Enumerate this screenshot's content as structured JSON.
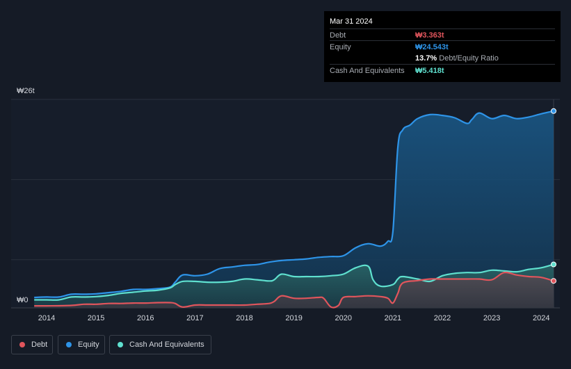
{
  "tooltip": {
    "date": "Mar 31 2024",
    "debt_label": "Debt",
    "debt_value": "₩3.363t",
    "equity_label": "Equity",
    "equity_value": "₩24.543t",
    "ratio_value": "13.7%",
    "ratio_label": "Debt/Equity Ratio",
    "cash_label": "Cash And Equivalents",
    "cash_value": "₩5.418t"
  },
  "legend": {
    "debt": "Debt",
    "equity": "Equity",
    "cash": "Cash And Equivalents"
  },
  "colors": {
    "debt": "#e0555c",
    "equity": "#2e94e8",
    "cash": "#5fe0cf",
    "background": "#151b26"
  },
  "chart_data": {
    "type": "area",
    "x_range": [
      2013.7,
      2024.3
    ],
    "ylim": [
      0,
      26
    ],
    "y_unit": "trillion KRW",
    "y_tick_labels": [
      "₩0",
      "₩26t"
    ],
    "x_tick_labels": [
      "2014",
      "2015",
      "2016",
      "2017",
      "2018",
      "2019",
      "2020",
      "2021",
      "2022",
      "2023",
      "2024"
    ],
    "grid": true,
    "legend_position": "bottom-left",
    "series": [
      {
        "name": "Debt",
        "key": "debt",
        "x": [
          2013.75,
          2014.0,
          2014.5,
          2014.75,
          2015.0,
          2015.25,
          2015.5,
          2015.75,
          2016.0,
          2016.25,
          2016.5,
          2016.6,
          2016.75,
          2017.0,
          2017.25,
          2017.5,
          2017.75,
          2018.0,
          2018.25,
          2018.5,
          2018.6,
          2018.75,
          2019.0,
          2019.25,
          2019.5,
          2019.6,
          2019.75,
          2019.9,
          2020.0,
          2020.25,
          2020.5,
          2020.75,
          2020.9,
          2021.0,
          2021.1,
          2021.2,
          2021.5,
          2021.75,
          2022.0,
          2022.25,
          2022.5,
          2022.75,
          2023.0,
          2023.25,
          2023.5,
          2023.75,
          2024.0,
          2024.25
        ],
        "values": [
          0.25,
          0.25,
          0.3,
          0.45,
          0.45,
          0.55,
          0.55,
          0.6,
          0.6,
          0.65,
          0.65,
          0.55,
          0.1,
          0.35,
          0.35,
          0.35,
          0.35,
          0.35,
          0.45,
          0.55,
          0.8,
          1.5,
          1.2,
          1.2,
          1.3,
          1.2,
          0.1,
          0.3,
          1.3,
          1.4,
          1.5,
          1.4,
          1.2,
          0.6,
          1.8,
          3.1,
          3.4,
          3.6,
          3.6,
          3.6,
          3.6,
          3.6,
          3.5,
          4.4,
          4.1,
          3.9,
          3.8,
          3.363
        ]
      },
      {
        "name": "Equity",
        "key": "equity",
        "x": [
          2013.75,
          2014.0,
          2014.25,
          2014.5,
          2014.75,
          2015.0,
          2015.25,
          2015.5,
          2015.75,
          2016.0,
          2016.25,
          2016.5,
          2016.6,
          2016.75,
          2017.0,
          2017.25,
          2017.5,
          2017.75,
          2018.0,
          2018.25,
          2018.5,
          2018.75,
          2019.0,
          2019.25,
          2019.5,
          2019.75,
          2020.0,
          2020.25,
          2020.5,
          2020.75,
          2020.9,
          2021.0,
          2021.1,
          2021.2,
          2021.35,
          2021.5,
          2021.75,
          2022.0,
          2022.25,
          2022.5,
          2022.6,
          2022.75,
          2023.0,
          2023.25,
          2023.5,
          2023.75,
          2024.0,
          2024.25
        ],
        "values": [
          1.3,
          1.35,
          1.35,
          1.7,
          1.7,
          1.75,
          1.9,
          2.05,
          2.3,
          2.3,
          2.4,
          2.6,
          3.2,
          4.1,
          4.0,
          4.2,
          4.9,
          5.1,
          5.3,
          5.4,
          5.7,
          5.9,
          6.0,
          6.1,
          6.3,
          6.4,
          6.5,
          7.5,
          8.0,
          7.7,
          8.3,
          9.5,
          20.0,
          22.2,
          22.8,
          23.6,
          24.1,
          24.0,
          23.7,
          23.0,
          23.5,
          24.3,
          23.6,
          24.0,
          23.6,
          23.8,
          24.2,
          24.543
        ]
      },
      {
        "name": "Cash And Equivalents",
        "key": "cash",
        "x": [
          2013.75,
          2014.0,
          2014.25,
          2014.5,
          2014.75,
          2015.0,
          2015.25,
          2015.5,
          2015.75,
          2016.0,
          2016.25,
          2016.5,
          2016.6,
          2016.75,
          2017.0,
          2017.25,
          2017.5,
          2017.75,
          2018.0,
          2018.25,
          2018.5,
          2018.6,
          2018.75,
          2019.0,
          2019.25,
          2019.5,
          2019.75,
          2020.0,
          2020.25,
          2020.5,
          2020.6,
          2020.75,
          2021.0,
          2021.1,
          2021.2,
          2021.5,
          2021.75,
          2022.0,
          2022.25,
          2022.5,
          2022.75,
          2023.0,
          2023.25,
          2023.5,
          2023.75,
          2024.0,
          2024.25
        ],
        "values": [
          1.0,
          1.0,
          1.0,
          1.35,
          1.35,
          1.4,
          1.55,
          1.8,
          1.95,
          2.1,
          2.2,
          2.5,
          2.9,
          3.3,
          3.3,
          3.2,
          3.2,
          3.3,
          3.6,
          3.5,
          3.35,
          3.5,
          4.2,
          3.9,
          3.9,
          3.9,
          4.0,
          4.2,
          5.0,
          5.2,
          3.5,
          2.7,
          2.9,
          3.6,
          3.9,
          3.6,
          3.3,
          4.0,
          4.3,
          4.4,
          4.4,
          4.7,
          4.6,
          4.5,
          4.8,
          5.0,
          5.418
        ]
      }
    ]
  }
}
